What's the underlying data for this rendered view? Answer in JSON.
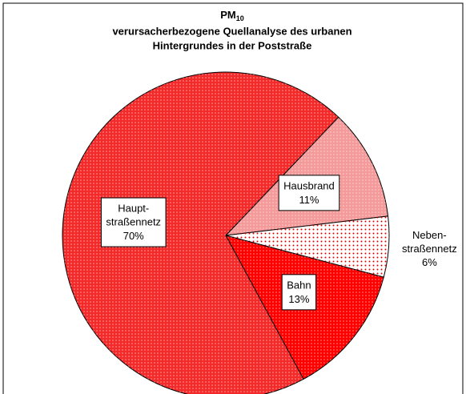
{
  "chart_data": {
    "type": "pie",
    "title": {
      "main": "PM",
      "subscript": "10"
    },
    "subtitle": [
      "verursacherbezogene Quellanalyse des urbanen",
      "Hintergrundes in der Poststraße"
    ],
    "categories": [
      "Hausbrand",
      "Neben-\nstraßennetz",
      "Bahn",
      "Haupt-\nstraßennetz"
    ],
    "values": [
      11,
      6,
      13,
      70
    ],
    "value_labels": [
      "11%",
      "6%",
      "13%",
      "70%"
    ],
    "colors": [
      "#f49a9a",
      "#ffffff",
      "#ff0000",
      "#f22a2a"
    ]
  }
}
